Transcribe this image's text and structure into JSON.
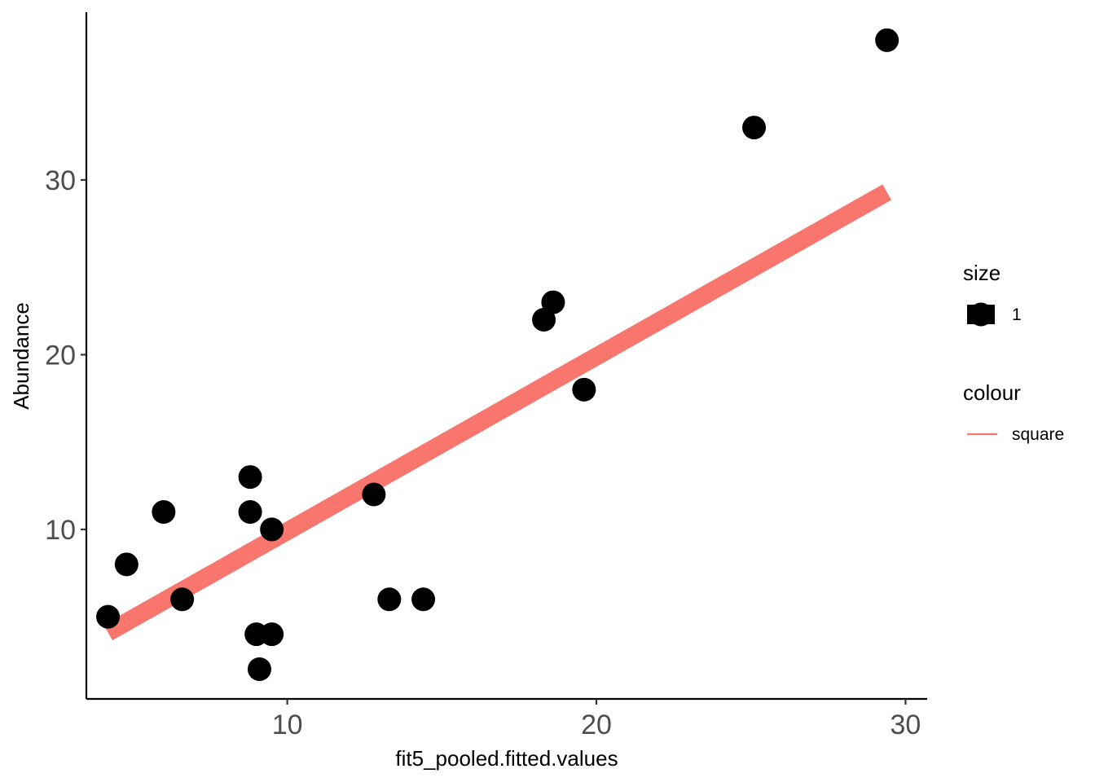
{
  "chart_data": {
    "type": "scatter",
    "xlabel": "fit5_pooled.fitted.values",
    "ylabel": "Abundance",
    "xlim": [
      3.5,
      30.7
    ],
    "ylim": [
      0.3,
      39.6
    ],
    "x_ticks": [
      10,
      20,
      30
    ],
    "y_ticks": [
      10,
      20,
      30
    ],
    "x_tick_labels": [
      "10",
      "20",
      "30"
    ],
    "y_tick_labels": [
      "10",
      "20",
      "30"
    ],
    "grid": false,
    "legend_position": "right",
    "points": [
      {
        "x": 4.2,
        "y": 5
      },
      {
        "x": 4.8,
        "y": 8
      },
      {
        "x": 6.0,
        "y": 11
      },
      {
        "x": 6.6,
        "y": 6
      },
      {
        "x": 8.8,
        "y": 13
      },
      {
        "x": 8.8,
        "y": 11
      },
      {
        "x": 9.0,
        "y": 4
      },
      {
        "x": 9.1,
        "y": 2
      },
      {
        "x": 9.5,
        "y": 10
      },
      {
        "x": 9.5,
        "y": 4
      },
      {
        "x": 12.8,
        "y": 12
      },
      {
        "x": 13.3,
        "y": 6
      },
      {
        "x": 14.4,
        "y": 6
      },
      {
        "x": 18.3,
        "y": 22
      },
      {
        "x": 18.6,
        "y": 23
      },
      {
        "x": 19.6,
        "y": 18
      },
      {
        "x": 25.1,
        "y": 33
      },
      {
        "x": 29.4,
        "y": 38
      }
    ],
    "line": {
      "x": [
        4.2,
        29.4
      ],
      "y": [
        4.1,
        29.3
      ]
    },
    "point_color": "#000000",
    "line_color": "#F8766D",
    "legends": [
      {
        "title": "size",
        "key": "point",
        "label": "1"
      },
      {
        "title": "colour",
        "key": "line",
        "label": "square"
      }
    ]
  }
}
